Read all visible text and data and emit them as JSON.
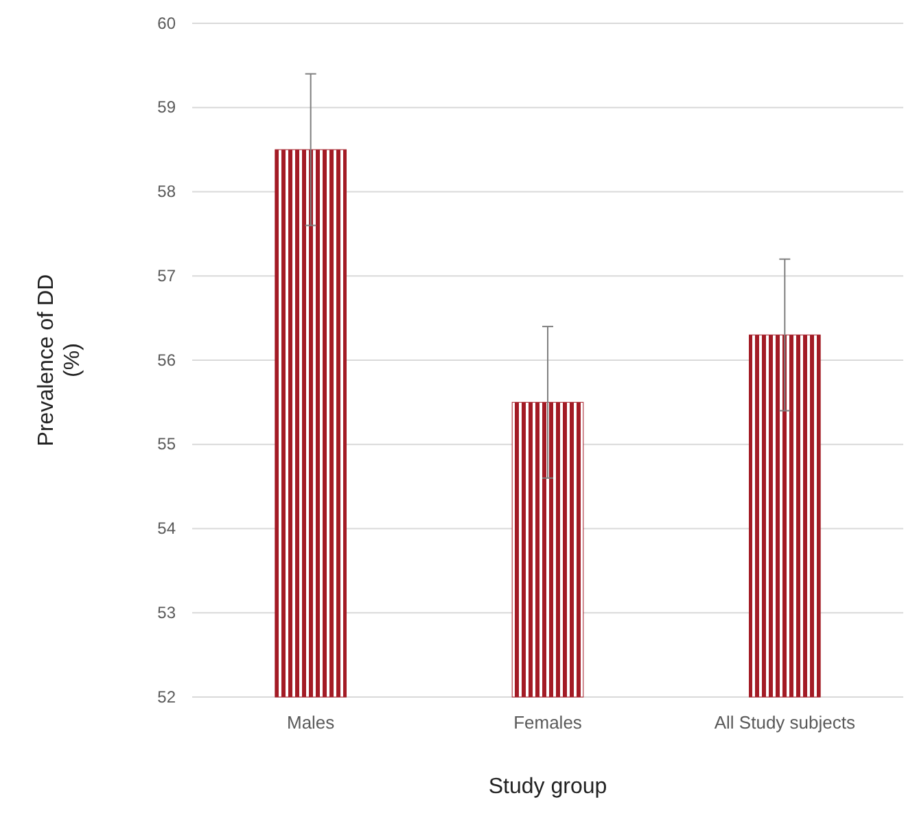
{
  "chart_data": {
    "type": "bar",
    "xlabel": "Study group",
    "ylabel": "Prevalence of DD\n(%)",
    "categories": [
      "Males",
      "Females",
      "All Study subjects"
    ],
    "values": [
      58.5,
      55.5,
      56.3
    ],
    "errors": [
      0.9,
      0.9,
      0.9
    ],
    "color": "#a31b25",
    "ylim": [
      52,
      60
    ],
    "yticks": [
      52,
      53,
      54,
      55,
      56,
      57,
      58,
      59,
      60
    ],
    "grid": "y"
  }
}
